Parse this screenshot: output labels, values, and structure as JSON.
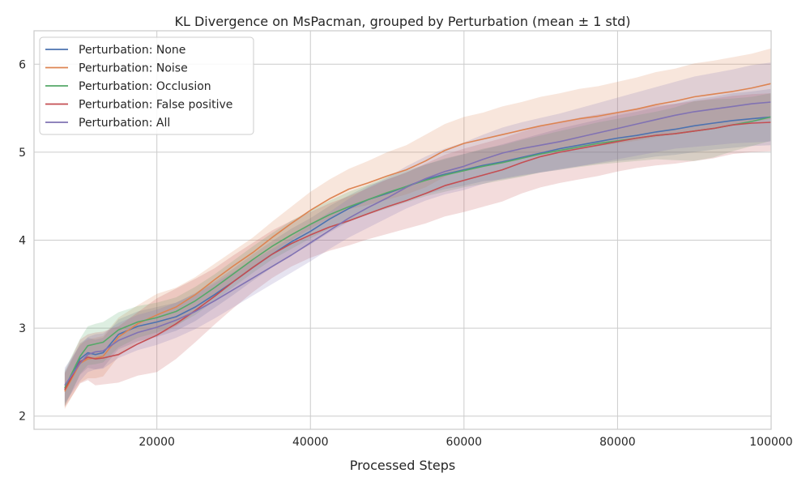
{
  "chart_data": {
    "type": "line",
    "title": "KL Divergence on MsPacman, grouped by Perturbation (mean ± 1 std)",
    "xlabel": "Processed Steps",
    "ylabel": "",
    "xlim": [
      4000,
      100000
    ],
    "ylim": [
      1.85,
      6.38
    ],
    "xticks": [
      20000,
      40000,
      60000,
      80000,
      100000
    ],
    "yticks": [
      2,
      3,
      4,
      5,
      6
    ],
    "grid": true,
    "legend_position": "top-left",
    "x": [
      8000,
      10000,
      11000,
      12000,
      13000,
      15000,
      17500,
      20000,
      22500,
      25000,
      27500,
      30000,
      32500,
      35000,
      37500,
      40000,
      42500,
      45000,
      47500,
      50000,
      52500,
      55000,
      57500,
      60000,
      62500,
      65000,
      67500,
      70000,
      72500,
      75000,
      77500,
      80000,
      82500,
      85000,
      87500,
      90000,
      92500,
      95000,
      97500,
      100000
    ],
    "series": [
      {
        "name": "Perturbation: None",
        "color": "#4c72b0",
        "values": [
          2.3,
          2.65,
          2.72,
          2.7,
          2.72,
          2.93,
          3.02,
          3.07,
          3.13,
          3.24,
          3.38,
          3.53,
          3.69,
          3.84,
          3.98,
          4.1,
          4.24,
          4.36,
          4.46,
          4.53,
          4.61,
          4.69,
          4.75,
          4.8,
          4.85,
          4.89,
          4.94,
          4.99,
          5.04,
          5.08,
          5.12,
          5.16,
          5.19,
          5.23,
          5.26,
          5.3,
          5.33,
          5.36,
          5.38,
          5.4
        ],
        "std": [
          0.19,
          0.18,
          0.17,
          0.17,
          0.17,
          0.17,
          0.17,
          0.17,
          0.16,
          0.16,
          0.15,
          0.15,
          0.15,
          0.15,
          0.15,
          0.15,
          0.15,
          0.15,
          0.16,
          0.16,
          0.16,
          0.17,
          0.17,
          0.18,
          0.18,
          0.2,
          0.21,
          0.22,
          0.23,
          0.24,
          0.25,
          0.26,
          0.27,
          0.28,
          0.29,
          0.3,
          0.3,
          0.31,
          0.31,
          0.32
        ]
      },
      {
        "name": "Perturbation: Noise",
        "color": "#dd8452",
        "values": [
          2.28,
          2.6,
          2.65,
          2.66,
          2.68,
          2.9,
          3.05,
          3.15,
          3.24,
          3.38,
          3.55,
          3.71,
          3.86,
          4.03,
          4.19,
          4.34,
          4.47,
          4.58,
          4.65,
          4.73,
          4.8,
          4.9,
          5.02,
          5.1,
          5.15,
          5.2,
          5.25,
          5.3,
          5.34,
          5.38,
          5.41,
          5.45,
          5.49,
          5.54,
          5.58,
          5.63,
          5.66,
          5.69,
          5.73,
          5.78
        ],
        "std": [
          0.2,
          0.22,
          0.22,
          0.23,
          0.23,
          0.22,
          0.21,
          0.24,
          0.22,
          0.2,
          0.18,
          0.17,
          0.17,
          0.18,
          0.19,
          0.21,
          0.22,
          0.23,
          0.25,
          0.27,
          0.28,
          0.3,
          0.3,
          0.3,
          0.3,
          0.32,
          0.32,
          0.33,
          0.33,
          0.34,
          0.34,
          0.35,
          0.36,
          0.37,
          0.37,
          0.38,
          0.38,
          0.39,
          0.39,
          0.4
        ]
      },
      {
        "name": "Perturbation: Occlusion",
        "color": "#55a868",
        "values": [
          2.32,
          2.68,
          2.8,
          2.82,
          2.84,
          2.98,
          3.07,
          3.12,
          3.19,
          3.31,
          3.46,
          3.62,
          3.78,
          3.93,
          4.06,
          4.18,
          4.29,
          4.38,
          4.46,
          4.54,
          4.61,
          4.68,
          4.74,
          4.79,
          4.84,
          4.88,
          4.93,
          4.98,
          5.02,
          5.06,
          5.1,
          5.13,
          5.16,
          5.19,
          5.21,
          5.24,
          5.27,
          5.31,
          5.35,
          5.4
        ],
        "std": [
          0.2,
          0.2,
          0.22,
          0.23,
          0.23,
          0.2,
          0.18,
          0.17,
          0.16,
          0.16,
          0.15,
          0.15,
          0.15,
          0.15,
          0.16,
          0.16,
          0.16,
          0.17,
          0.17,
          0.18,
          0.18,
          0.18,
          0.19,
          0.19,
          0.2,
          0.2,
          0.21,
          0.21,
          0.22,
          0.23,
          0.24,
          0.25,
          0.26,
          0.27,
          0.3,
          0.34,
          0.33,
          0.3,
          0.28,
          0.27
        ]
      },
      {
        "name": "Perturbation: False positive",
        "color": "#c44e52",
        "values": [
          2.3,
          2.62,
          2.67,
          2.65,
          2.66,
          2.7,
          2.82,
          2.92,
          3.05,
          3.2,
          3.36,
          3.53,
          3.69,
          3.84,
          3.96,
          4.06,
          4.15,
          4.22,
          4.3,
          4.38,
          4.45,
          4.53,
          4.62,
          4.68,
          4.74,
          4.8,
          4.88,
          4.95,
          5.0,
          5.04,
          5.08,
          5.12,
          5.16,
          5.19,
          5.21,
          5.24,
          5.27,
          5.31,
          5.33,
          5.34
        ],
        "std": [
          0.2,
          0.25,
          0.26,
          0.3,
          0.3,
          0.32,
          0.36,
          0.42,
          0.4,
          0.36,
          0.32,
          0.3,
          0.28,
          0.27,
          0.26,
          0.26,
          0.27,
          0.28,
          0.29,
          0.31,
          0.32,
          0.34,
          0.35,
          0.36,
          0.36,
          0.36,
          0.35,
          0.35,
          0.35,
          0.35,
          0.35,
          0.34,
          0.34,
          0.34,
          0.34,
          0.34,
          0.34,
          0.33,
          0.33,
          0.33
        ]
      },
      {
        "name": "Perturbation: All",
        "color": "#8172b3",
        "values": [
          2.35,
          2.6,
          2.7,
          2.73,
          2.74,
          2.86,
          2.95,
          3.01,
          3.09,
          3.19,
          3.31,
          3.44,
          3.57,
          3.7,
          3.83,
          3.97,
          4.11,
          4.25,
          4.37,
          4.48,
          4.6,
          4.7,
          4.78,
          4.84,
          4.92,
          4.99,
          5.04,
          5.08,
          5.12,
          5.17,
          5.22,
          5.27,
          5.32,
          5.37,
          5.42,
          5.46,
          5.49,
          5.52,
          5.55,
          5.57
        ],
        "std": [
          0.2,
          0.2,
          0.2,
          0.2,
          0.2,
          0.2,
          0.2,
          0.2,
          0.2,
          0.2,
          0.2,
          0.2,
          0.2,
          0.2,
          0.2,
          0.21,
          0.21,
          0.22,
          0.23,
          0.23,
          0.24,
          0.25,
          0.26,
          0.27,
          0.28,
          0.29,
          0.3,
          0.31,
          0.32,
          0.33,
          0.34,
          0.35,
          0.36,
          0.37,
          0.38,
          0.4,
          0.41,
          0.42,
          0.44,
          0.45
        ]
      }
    ]
  }
}
